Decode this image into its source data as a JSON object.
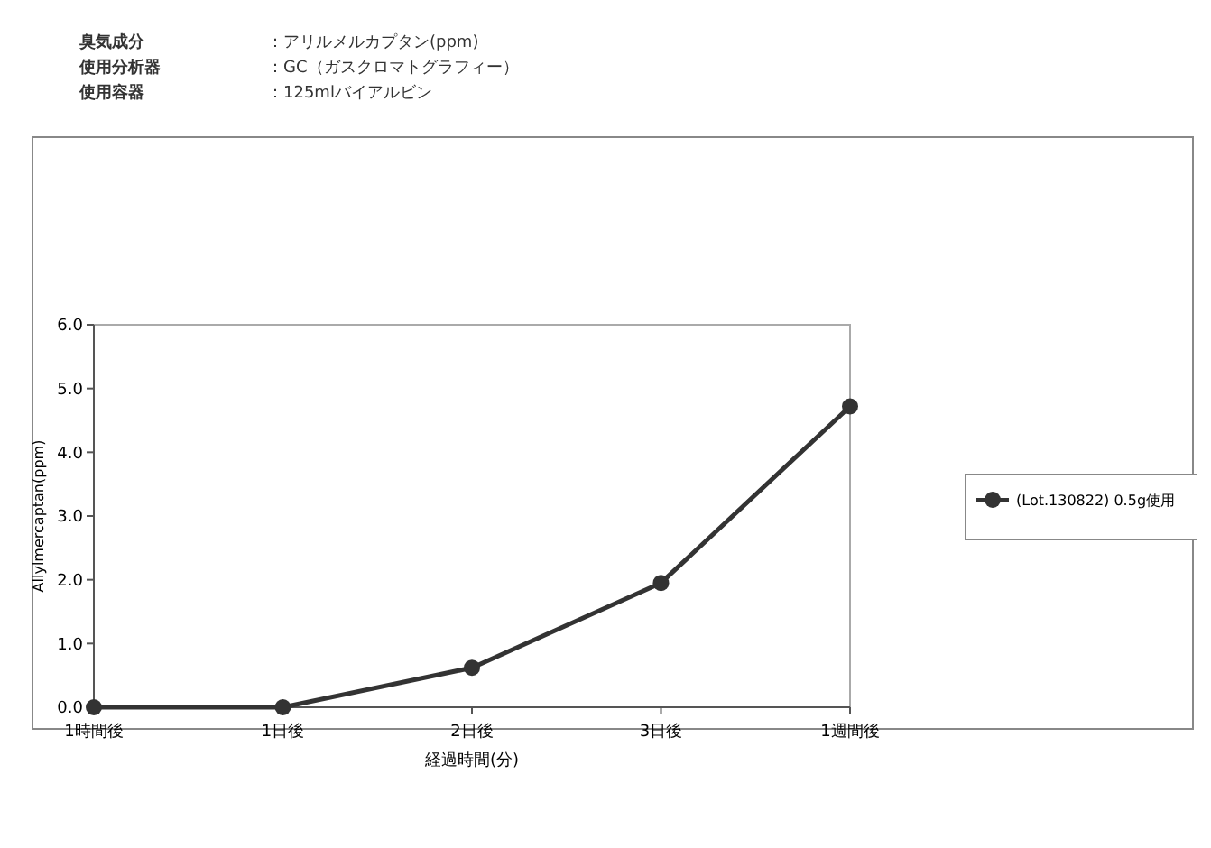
{
  "chart_data": {
    "type": "line",
    "xlabel": "経過時間(分)",
    "ylabel": "Allylmercaptan(ppm)",
    "annotations": [
      "臭気成分　：アリルメルカプタン(ppm)",
      "使用分析器　：GC（ガスクロマトグラフィー）",
      "使用容器　：125mlバイアルビン"
    ],
    "categories": [
      "1時間後",
      "1日後",
      "2日後",
      "3日後",
      "1週間後"
    ],
    "series": [
      {
        "name": "(Lot.130822) 0.5g使用",
        "color": "#333333",
        "values": [
          0,
          0,
          0.62,
          1.95,
          4.72
        ]
      }
    ],
    "ylim": [
      0,
      6
    ],
    "yticks": [
      {
        "value": 0,
        "label": "0.0"
      },
      {
        "value": 1,
        "label": "1.0"
      },
      {
        "value": 2,
        "label": "2.0"
      },
      {
        "value": 3,
        "label": "3.0"
      },
      {
        "value": 4,
        "label": "4.0"
      },
      {
        "value": 5,
        "label": "5.0"
      },
      {
        "value": 6,
        "label": "6.0"
      }
    ],
    "grid": false,
    "legend": "right",
    "marker": "circle",
    "line_style": "solid"
  }
}
